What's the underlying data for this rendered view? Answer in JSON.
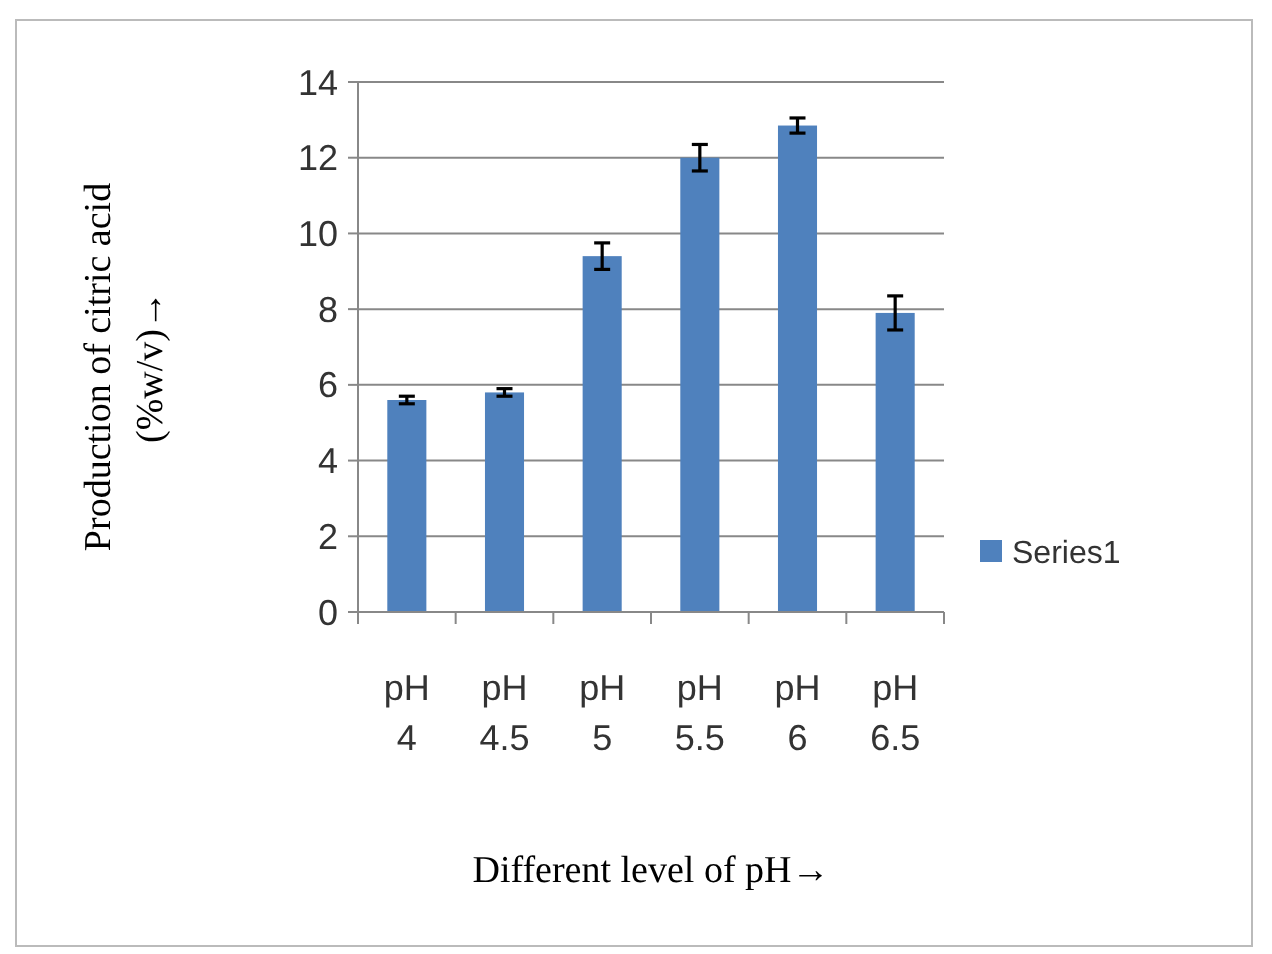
{
  "chart_data": {
    "type": "bar",
    "xlabel": "Different level of pH→",
    "ylabel": "Production of citric acid (%w/v)→",
    "categories": [
      "pH 4",
      "pH 4.5",
      "pH 5",
      "pH 5.5",
      "pH 6",
      "pH 6.5"
    ],
    "series": [
      {
        "name": "Series1",
        "color": "#4f81bd",
        "values": [
          5.6,
          5.8,
          9.4,
          12.0,
          12.85,
          7.9
        ],
        "errors": [
          0.1,
          0.1,
          0.35,
          0.35,
          0.2,
          0.45
        ]
      }
    ],
    "ylim": [
      0,
      14
    ],
    "yticks": [
      0,
      2,
      4,
      6,
      8,
      10,
      12,
      14
    ],
    "grid": "y",
    "legend": "right"
  }
}
